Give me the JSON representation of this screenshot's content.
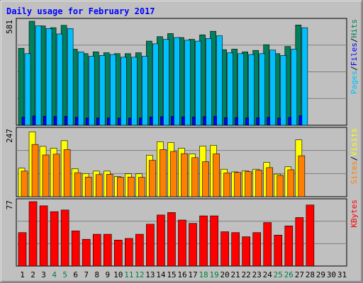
{
  "colors": {
    "frame_bg": "#c0c0c0",
    "title": "#0000ff",
    "hits": "#00805c",
    "files": "#0000ff",
    "pages": "#00c0ff",
    "visits": "#ffff00",
    "sites": "#ff8000",
    "kbytes": "#ff0000",
    "weekend_day": "#008040",
    "weekday": "#000000",
    "gridline": "#808080"
  },
  "chart_data": {
    "type": "bar",
    "title": "Daily usage for February 2017",
    "x": [
      1,
      2,
      3,
      4,
      5,
      6,
      7,
      8,
      9,
      10,
      11,
      12,
      13,
      14,
      15,
      16,
      17,
      18,
      19,
      20,
      21,
      22,
      23,
      24,
      25,
      26,
      27,
      28,
      29,
      30,
      31
    ],
    "weekend_days": [
      4,
      5,
      11,
      12,
      18,
      19,
      25,
      26
    ],
    "panels": [
      {
        "id": "top",
        "ymax_label": "581",
        "ymax": 581,
        "legend": [
          {
            "text": "Hits",
            "color": "#00805c"
          },
          {
            "text": "/",
            "color": "#000000"
          },
          {
            "text": "Files",
            "color": "#0000ff"
          },
          {
            "text": "/",
            "color": "#000000"
          },
          {
            "text": "Pages",
            "color": "#00c0ff"
          }
        ],
        "series": [
          {
            "name": "Hits",
            "color": "#00805c",
            "values": [
              430,
              581,
              555,
              545,
              558,
              425,
              400,
              410,
              405,
              400,
              400,
              405,
              470,
              495,
              512,
              490,
              480,
              505,
              525,
              422,
              425,
              410,
              418,
              450,
              400,
              440,
              560,
              null,
              null,
              null,
              null
            ]
          },
          {
            "name": "Files",
            "color": "#0000ff",
            "values": [
              45,
              52,
              50,
              49,
              50,
              44,
              40,
              41,
              41,
              40,
              40,
              41,
              46,
              48,
              49,
              47,
              46,
              48,
              50,
              43,
              43,
              41,
              42,
              44,
              40,
              44,
              53,
              null,
              null,
              null,
              null
            ]
          },
          {
            "name": "Pages",
            "color": "#00c0ff",
            "values": [
              400,
              555,
              540,
              510,
              540,
              410,
              385,
              390,
              395,
              380,
              380,
              385,
              455,
              480,
              490,
              475,
              470,
              485,
              500,
              405,
              400,
              395,
              400,
              420,
              390,
              425,
              545,
              null,
              null,
              null,
              null
            ]
          }
        ]
      },
      {
        "id": "middle",
        "ymax_label": "247",
        "ymax": 247,
        "legend": [
          {
            "text": "Visits",
            "color": "#ffff00"
          },
          {
            "text": "/",
            "color": "#000000"
          },
          {
            "text": "Sites",
            "color": "#ff8000"
          }
        ],
        "series": [
          {
            "name": "Visits",
            "color": "#ffff00",
            "values": [
              106,
              241,
              187,
              180,
              208,
              104,
              86,
              95,
              95,
              75,
              85,
              85,
              154,
              204,
              201,
              180,
              159,
              188,
              191,
              102,
              92,
              96,
              102,
              127,
              84,
              111,
              211,
              null,
              null,
              null,
              null
            ]
          },
          {
            "name": "Sites",
            "color": "#ff8000",
            "values": [
              95,
              194,
              155,
              158,
              175,
              89,
              73,
              82,
              83,
              72,
              73,
              72,
              135,
              175,
              168,
              160,
              145,
              130,
              159,
              88,
              90,
              93,
              98,
              108,
              79,
              100,
              152,
              null,
              null,
              null,
              null
            ]
          }
        ]
      },
      {
        "id": "bottom",
        "ymax_label": "77",
        "ymax": 77,
        "legend": [
          {
            "text": "KBytes",
            "color": "#ff0000"
          }
        ],
        "series": [
          {
            "name": "KBytes",
            "color": "#ff0000",
            "values": [
              40,
              77,
              72,
              65,
              67,
              42,
              32,
              38,
              38,
              31,
              33,
              38,
              50,
              61,
              64,
              55,
              51,
              60,
              60,
              41,
              40,
              35,
              40,
              52,
              37,
              48,
              58,
              73,
              null,
              null,
              null
            ]
          }
        ]
      }
    ]
  }
}
